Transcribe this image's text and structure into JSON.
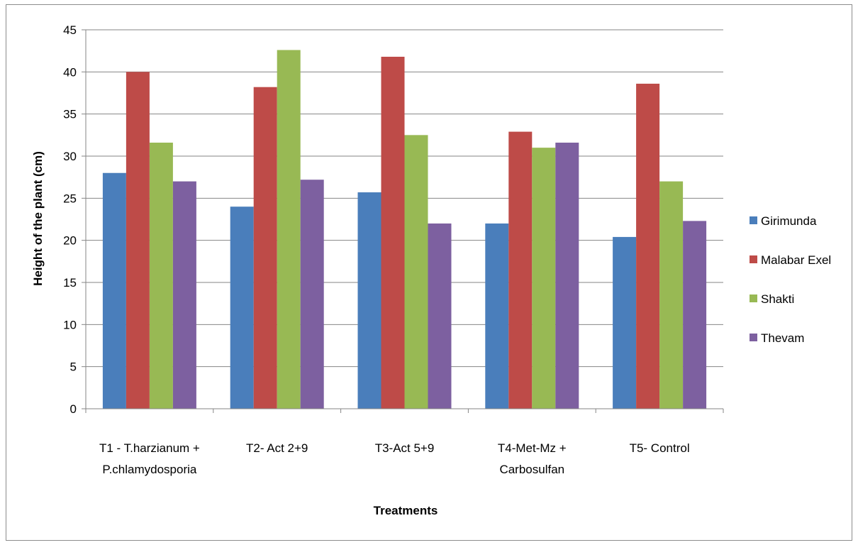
{
  "chart_data": {
    "type": "bar",
    "title": "",
    "xlabel": "Treatments",
    "ylabel": "Height of the plant  (cm)",
    "ylim": [
      0,
      45
    ],
    "ytick_step": 5,
    "yticks": [
      "0",
      "5",
      "10",
      "15",
      "20",
      "25",
      "30",
      "35",
      "40",
      "45"
    ],
    "grid": true,
    "legend_position": "right",
    "categories": [
      [
        "T1 - T.harzianum  +",
        "P.chlamydosporia"
      ],
      [
        "T2- Act 2+9"
      ],
      [
        "T3-Act 5+9"
      ],
      [
        "T4-Met-Mz +",
        "Carbosulfan"
      ],
      [
        "T5- Control"
      ]
    ],
    "series": [
      {
        "name": "Girimunda",
        "color": "#4a7ebb",
        "values": [
          28.0,
          24.0,
          25.7,
          22.0,
          20.4
        ]
      },
      {
        "name": "Malabar Exel",
        "color": "#be4b48",
        "values": [
          40.0,
          38.2,
          41.8,
          32.9,
          38.6
        ]
      },
      {
        "name": "Shakti",
        "color": "#98b954",
        "values": [
          31.6,
          42.6,
          32.5,
          31.0,
          27.0
        ]
      },
      {
        "name": "Thevam",
        "color": "#7d60a0",
        "values": [
          27.0,
          27.2,
          22.0,
          31.6,
          22.3
        ]
      }
    ]
  }
}
